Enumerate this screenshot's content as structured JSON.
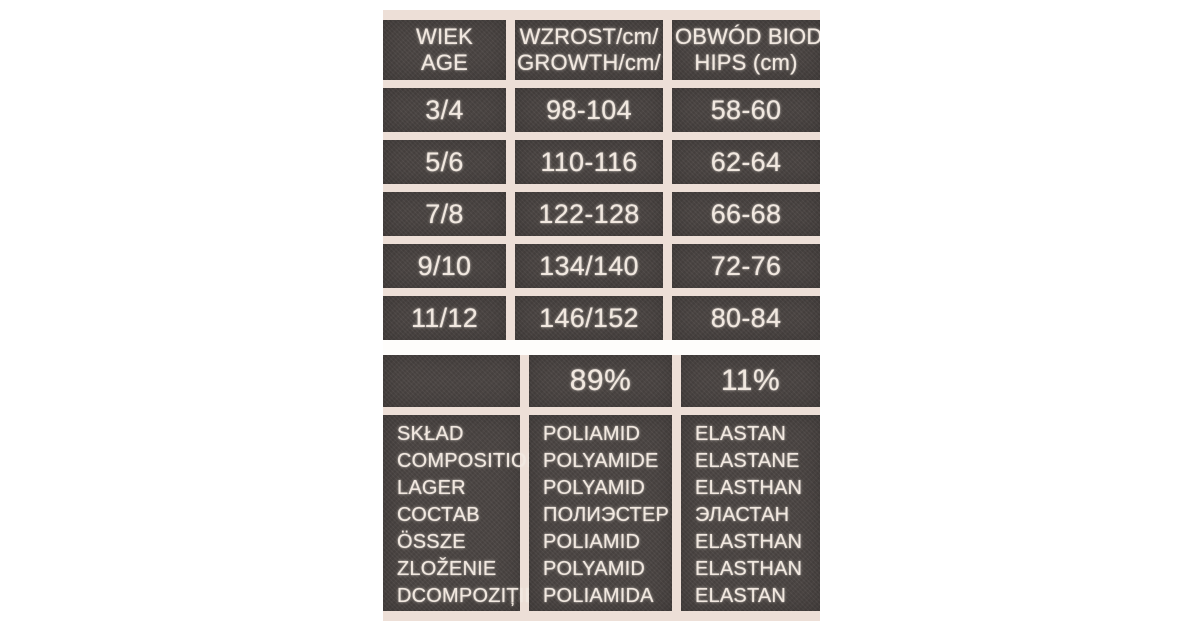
{
  "size_table": {
    "headers": [
      {
        "line1": "WIEK",
        "line2": "AGE"
      },
      {
        "line1": "WZROST/cm/",
        "line2": "GROWTH/cm/"
      },
      {
        "line1": "OBWÓD BIODER",
        "line2": "HIPS (cm)"
      }
    ],
    "rows": [
      {
        "age": "3/4",
        "growth": "98-104",
        "hips": "58-60"
      },
      {
        "age": "5/6",
        "growth": "110-116",
        "hips": "62-64"
      },
      {
        "age": "7/8",
        "growth": "122-128",
        "hips": "66-68"
      },
      {
        "age": "9/10",
        "growth": "134/140",
        "hips": "72-76"
      },
      {
        "age": "11/12",
        "growth": "146/152",
        "hips": "80-84"
      }
    ]
  },
  "composition_table": {
    "percent_polyamide": "89%",
    "percent_elastane": "11%",
    "rows": [
      {
        "label": "SKŁAD",
        "material": "POLIAMID",
        "elastane": "ELASTAN"
      },
      {
        "label": "COMPOSITION",
        "material": "POLYAMIDE",
        "elastane": "ELASTANE"
      },
      {
        "label": "LAGER",
        "material": "POLYAMID",
        "elastane": "ELASTHAN"
      },
      {
        "label": "СОСТАВ",
        "material": "ПОЛИЭСТЕР",
        "elastane": "ЭЛАСТАН"
      },
      {
        "label": "ÖSSZE",
        "material": "POLIAMID",
        "elastane": "ELASTHAN"
      },
      {
        "label": "ZLOŽENIE",
        "material": "POLYAMID",
        "elastane": "ELASTHAN"
      },
      {
        "label": "DCOMPOZIȚIE",
        "material": "POLIAMIDA",
        "elastane": "ELASTAN"
      }
    ]
  },
  "colors": {
    "page_background": "#ffffff",
    "label_dark": "#4b4543",
    "gridline_cream": "#eddfd7",
    "label_text": "#f1e8e0",
    "separator_white": "#fefdfb"
  }
}
